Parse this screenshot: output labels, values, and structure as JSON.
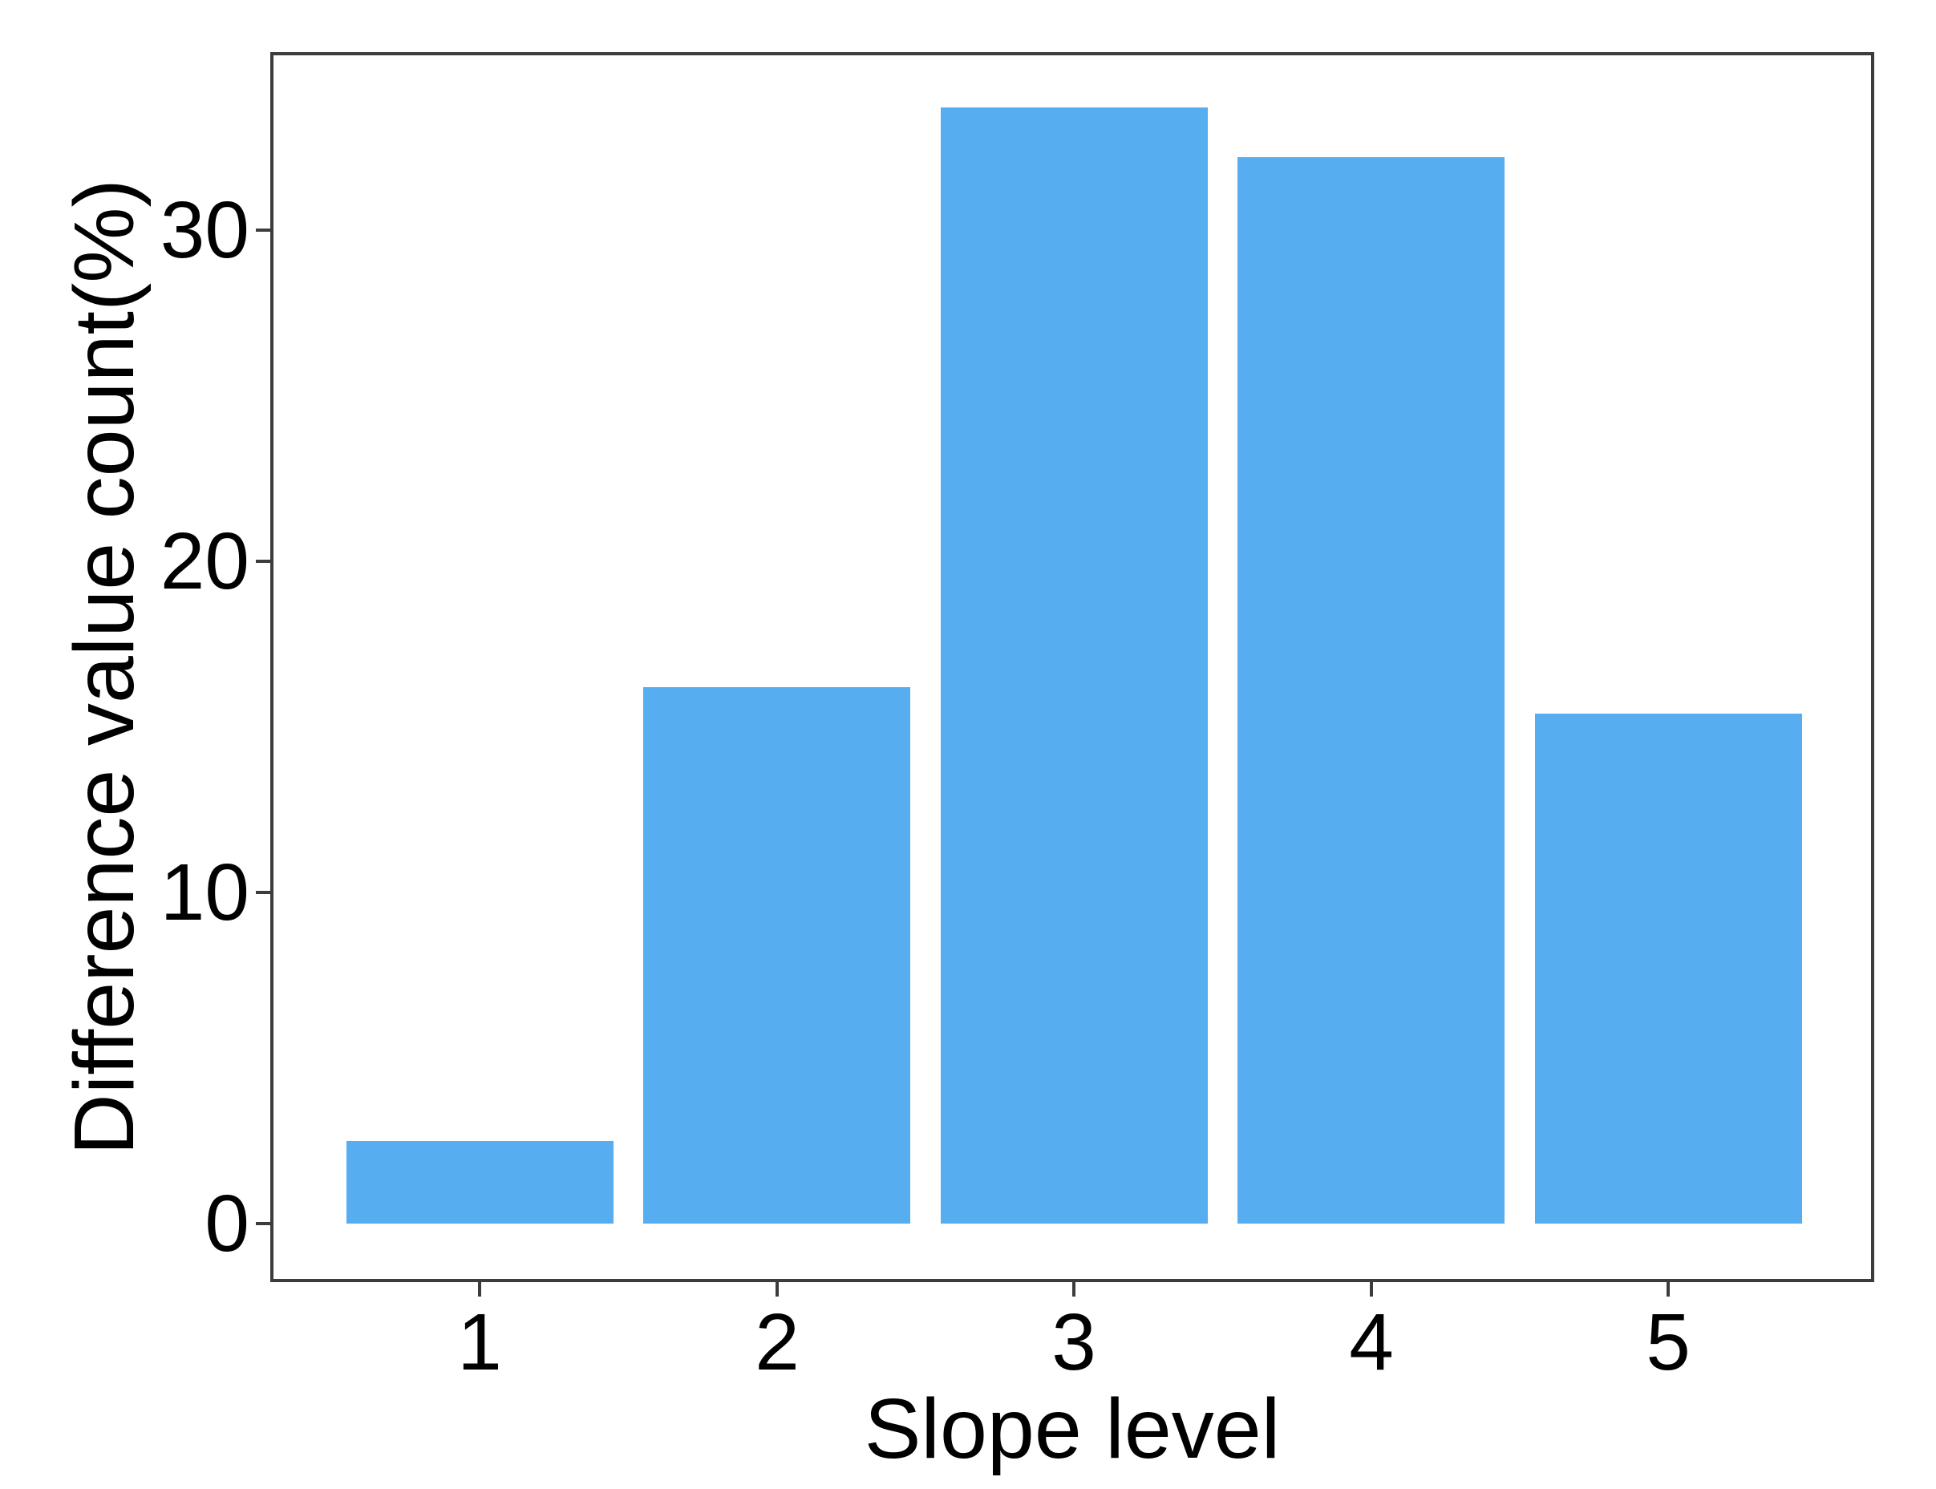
{
  "chart_data": {
    "type": "bar",
    "title": "",
    "xlabel": "Slope level",
    "ylabel": "Difference value count(%)",
    "categories": [
      "1",
      "2",
      "3",
      "4",
      "5"
    ],
    "values": [
      2.5,
      16.2,
      33.7,
      32.2,
      15.4
    ],
    "yticks": [
      0,
      10,
      20,
      30
    ],
    "ylim": [
      -1.7,
      35.3
    ],
    "grid": "off",
    "legend": "none",
    "bar_color": "#56AEF0",
    "axis_color": "#3C3C3C",
    "text_color": "#000000",
    "background_color": "#FFFFFF"
  }
}
